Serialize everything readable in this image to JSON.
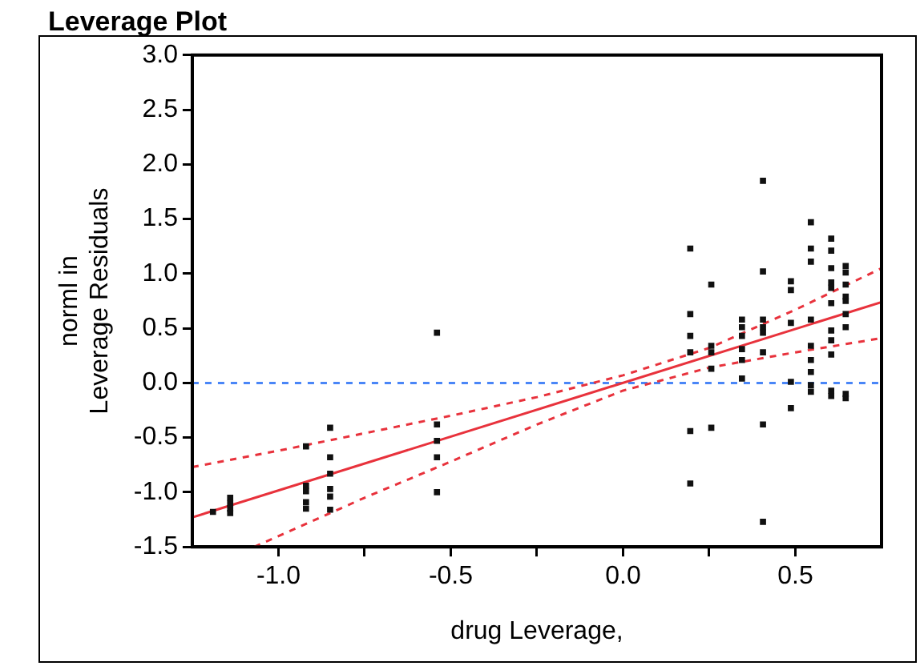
{
  "chart_data": {
    "type": "scatter",
    "title": "Leverage Plot",
    "xlabel": "drug Leverage,",
    "ylabel": "norml in Leverage Residuals",
    "xlim": [
      -1.25,
      0.75
    ],
    "ylim": [
      -1.5,
      3.0
    ],
    "xticks": [
      {
        "value": -1.0,
        "label": "-1.0"
      },
      {
        "value": -0.75,
        "label": null
      },
      {
        "value": -0.5,
        "label": "-0.5"
      },
      {
        "value": -0.25,
        "label": null
      },
      {
        "value": 0,
        "label": "0.0"
      },
      {
        "value": 0.25,
        "label": null
      },
      {
        "value": 0.5,
        "label": "0.5"
      }
    ],
    "yticks": [
      {
        "value": -1.5,
        "label": "-1.5"
      },
      {
        "value": -1.0,
        "label": "-1.0"
      },
      {
        "value": -0.5,
        "label": "-0.5"
      },
      {
        "value": 0,
        "label": "0.0"
      },
      {
        "value": 0.5,
        "label": "0.5"
      },
      {
        "value": 1.0,
        "label": "1.0"
      },
      {
        "value": 1.5,
        "label": "1.5"
      },
      {
        "value": 2.0,
        "label": "2.0"
      },
      {
        "value": 2.5,
        "label": "2.5"
      },
      {
        "value": 3.0,
        "label": "3.0"
      }
    ],
    "grid": false,
    "legend": false,
    "marker": "square",
    "ref_lines": [
      {
        "axis": "y",
        "value": 0,
        "color": "#4a86f7",
        "line_style": "dashed"
      }
    ],
    "series": [
      {
        "color": "#111111",
        "x": [
          -1.19,
          -1.14,
          -1.14,
          -1.14,
          -1.14,
          -0.92,
          -0.92,
          -0.92,
          -0.92,
          -0.92,
          -0.85,
          -0.85,
          -0.85,
          -0.85,
          -0.85,
          -0.85,
          -0.54,
          -0.54,
          -0.54,
          -0.54,
          -0.54,
          0.195,
          0.195,
          0.195,
          0.195,
          0.195,
          0.195,
          0.256,
          0.256,
          0.256,
          0.256,
          0.256,
          0.345,
          0.345,
          0.345,
          0.345,
          0.345,
          0.345,
          0.406,
          0.406,
          0.406,
          0.406,
          0.406,
          0.406,
          0.406,
          0.406,
          0.487,
          0.487,
          0.487,
          0.487,
          0.487,
          0.545,
          0.545,
          0.545,
          0.545,
          0.545,
          0.545,
          0.545,
          0.545,
          0.545,
          0.604,
          0.604,
          0.604,
          0.604,
          0.604,
          0.604,
          0.604,
          0.604,
          0.604,
          0.604,
          0.604,
          0.646,
          0.646,
          0.646,
          0.646,
          0.646,
          0.646,
          0.646,
          0.646,
          0.646
        ],
        "values": [
          -1.18,
          -1.05,
          -1.1,
          -1.15,
          -1.19,
          -0.58,
          -0.94,
          -0.99,
          -1.09,
          -1.15,
          -0.41,
          -0.68,
          -0.83,
          -0.97,
          -1.04,
          -1.16,
          0.46,
          -0.38,
          -0.53,
          -0.68,
          -1.0,
          1.23,
          0.63,
          0.43,
          0.28,
          -0.44,
          -0.92,
          0.9,
          0.34,
          0.28,
          0.13,
          -0.41,
          0.58,
          0.51,
          0.43,
          0.31,
          0.21,
          0.04,
          1.85,
          1.02,
          0.58,
          0.51,
          0.46,
          0.28,
          -0.38,
          -1.27,
          0.93,
          0.85,
          0.55,
          0.01,
          -0.23,
          1.47,
          1.23,
          1.11,
          0.58,
          0.34,
          0.21,
          0.1,
          -0.02,
          -0.08,
          1.32,
          1.21,
          1.05,
          0.92,
          0.87,
          0.73,
          0.48,
          0.39,
          0.26,
          -0.07,
          -0.12,
          1.07,
          1.01,
          0.9,
          0.79,
          0.75,
          0.63,
          0.51,
          -0.1,
          -0.14
        ]
      },
      {
        "type": "line",
        "color": "#e8323c",
        "marker": "none",
        "line_style": "solid",
        "x": [
          -1.25,
          0.75
        ],
        "values": [
          -1.23,
          0.74
        ]
      },
      {
        "type": "line",
        "color": "#e8323c",
        "marker": "none",
        "line_style": "dashed",
        "x": [
          -1.25,
          -1.0,
          -0.75,
          -0.5,
          -0.25,
          0,
          0.25,
          0.5,
          0.75
        ],
        "values": [
          -0.77,
          -0.62,
          -0.46,
          -0.3,
          -0.13,
          0.07,
          0.32,
          0.67,
          1.05
        ]
      },
      {
        "type": "line",
        "color": "#e8323c",
        "marker": "none",
        "line_style": "dashed",
        "x": [
          -1.07,
          -0.75,
          -0.5,
          -0.25,
          0,
          0.25,
          0.5,
          0.75
        ],
        "values": [
          -1.5,
          -1.05,
          -0.72,
          -0.38,
          -0.07,
          0.14,
          0.28,
          0.41
        ]
      }
    ]
  }
}
